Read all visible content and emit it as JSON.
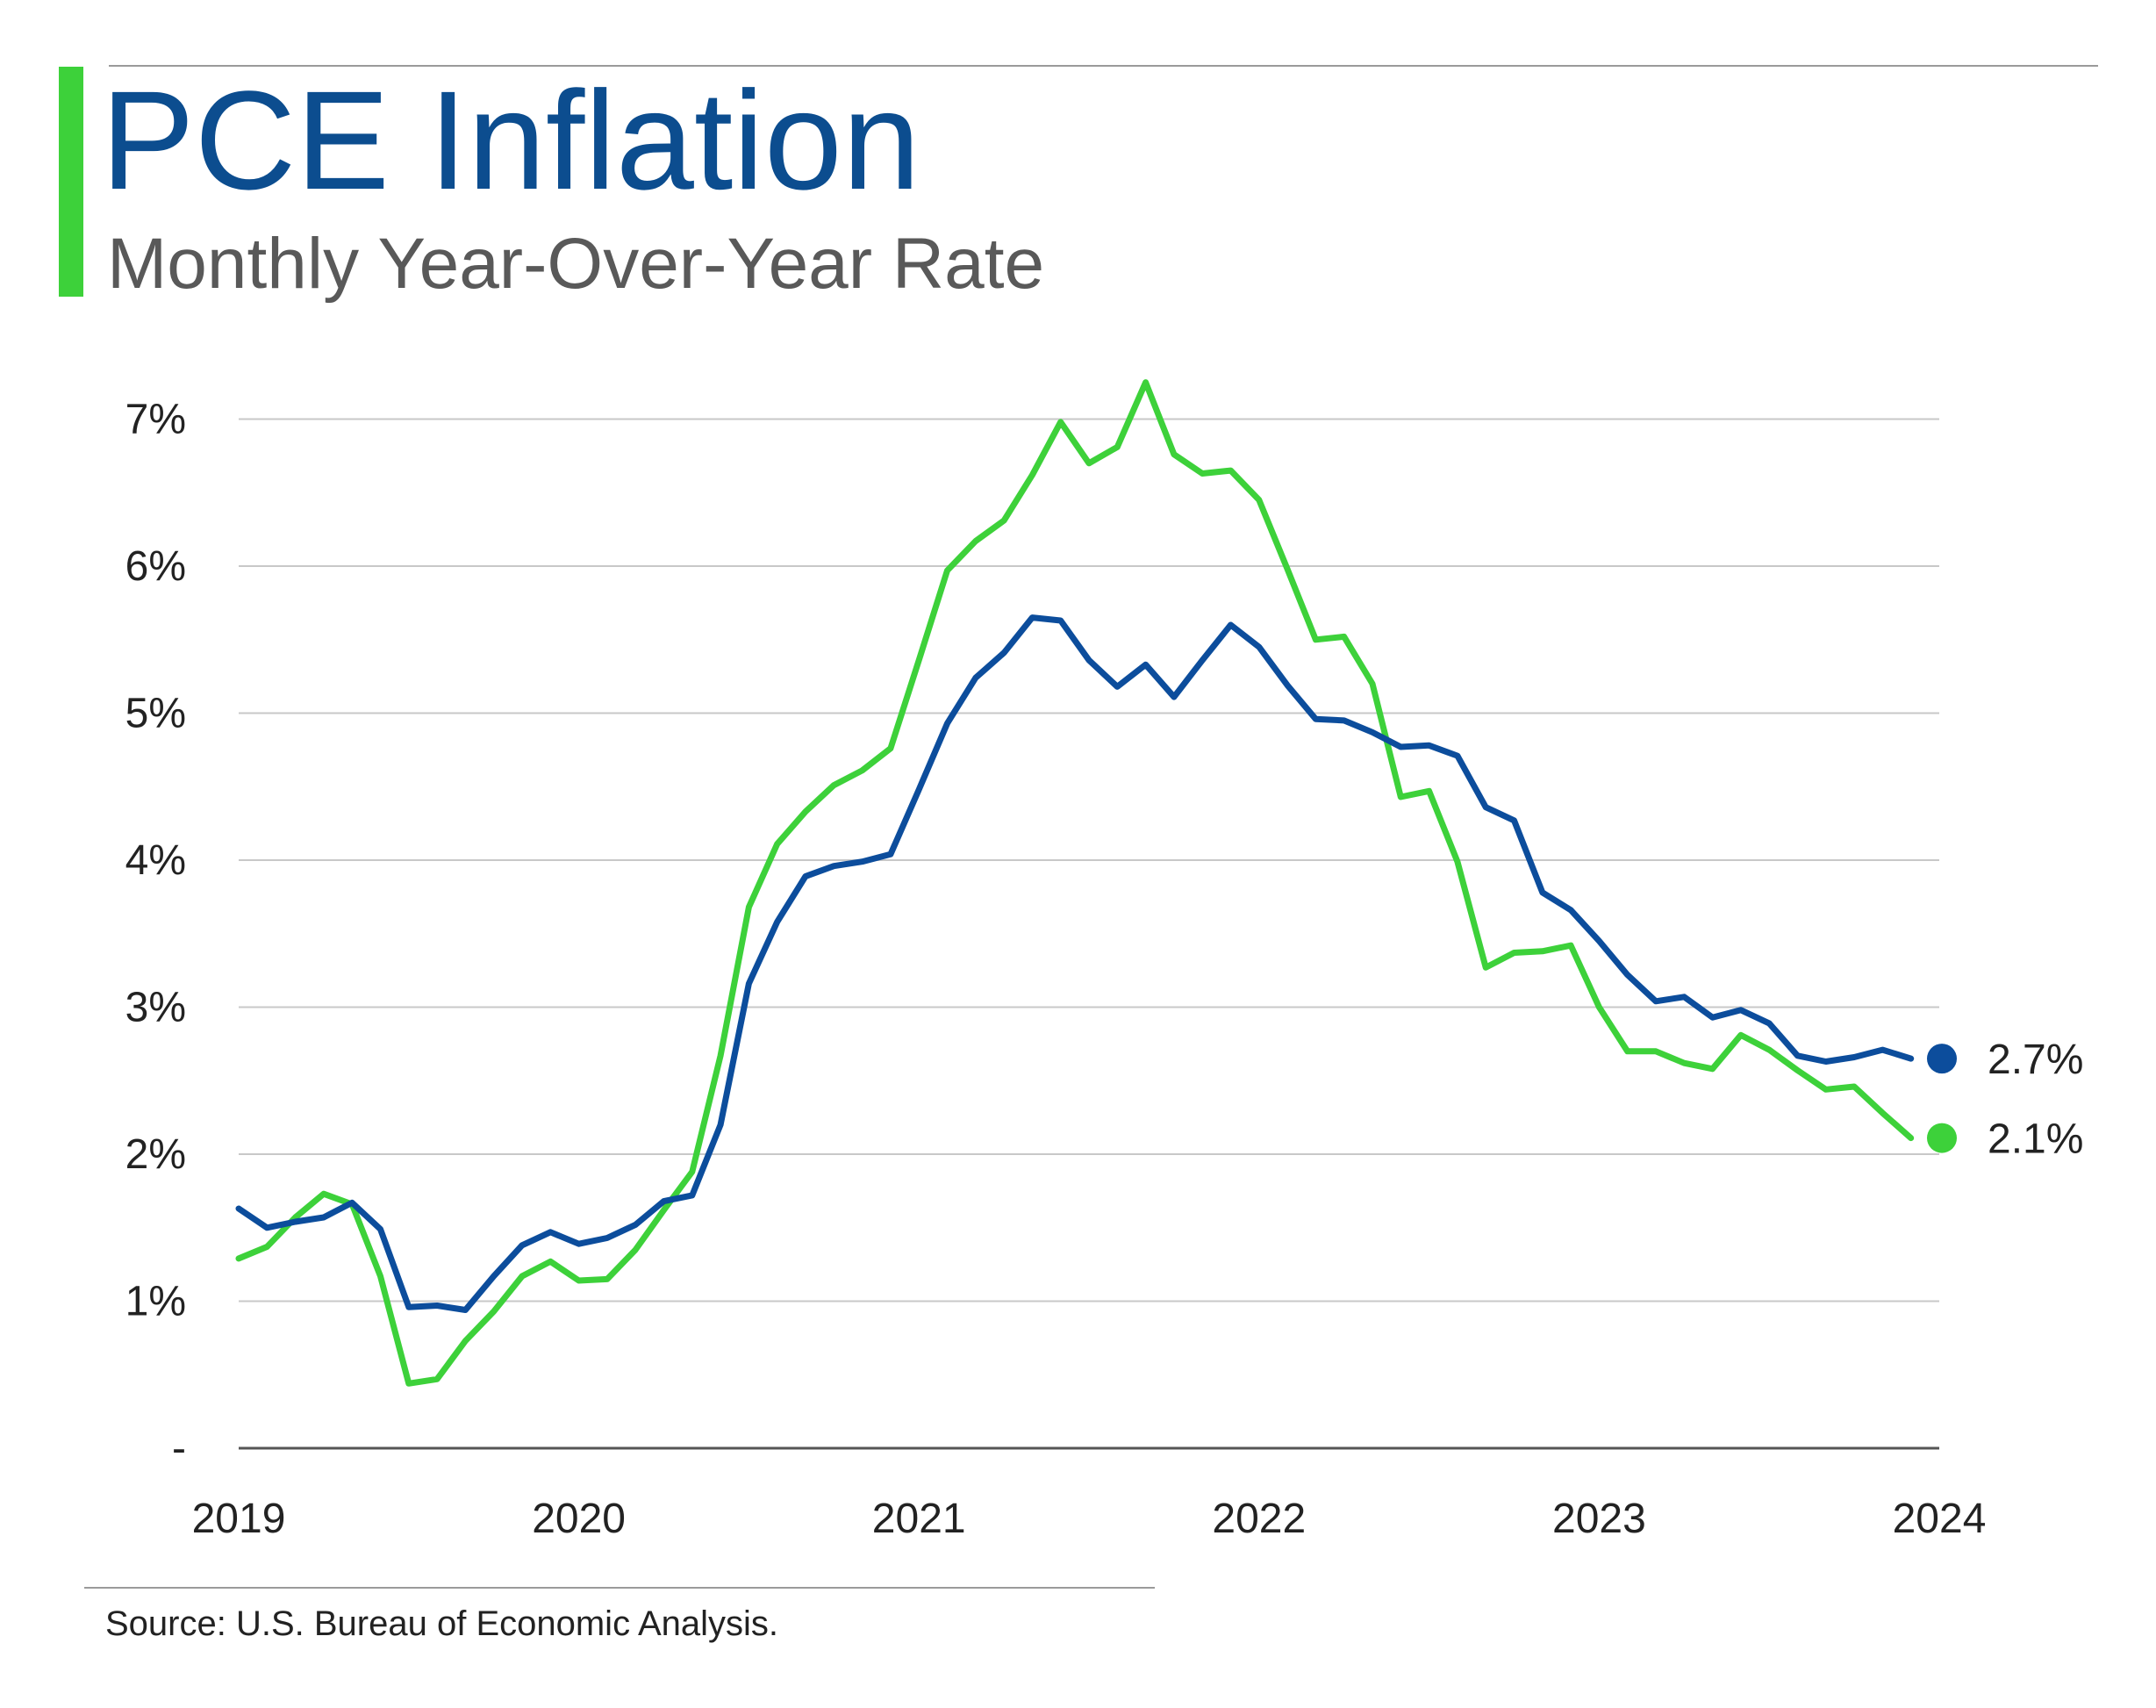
{
  "header": {
    "title": "PCE Inflation",
    "subtitle": "Monthly Year-Over-Year Rate"
  },
  "source": "Source: U.S. Bureau of Economic Analysis.",
  "colors": {
    "accent": "#3dd13a",
    "title": "#0c4d8f",
    "series_blue": "#0c4d9c",
    "series_green": "#3dd13a",
    "grid": "#c8c8c8"
  },
  "chart_data": {
    "type": "line",
    "x_start": "2019-01",
    "x_end": "2024-01",
    "x_ticks": [
      "2019",
      "2020",
      "2021",
      "2022",
      "2023",
      "2024"
    ],
    "ylim": [
      0,
      7.4
    ],
    "y_ticks": [
      {
        "value": 0,
        "label": "-"
      },
      {
        "value": 1,
        "label": "1%"
      },
      {
        "value": 2,
        "label": "2%"
      },
      {
        "value": 3,
        "label": "3%"
      },
      {
        "value": 4,
        "label": "4%"
      },
      {
        "value": 5,
        "label": "5%"
      },
      {
        "value": 6,
        "label": "6%"
      },
      {
        "value": 7,
        "label": "7%"
      }
    ],
    "grid": true,
    "legend": "none",
    "series": [
      {
        "color": "#0c4d9c",
        "end_label": "2.7%",
        "values": [
          1.63,
          1.5,
          1.54,
          1.57,
          1.67,
          1.49,
          0.96,
          0.97,
          0.94,
          1.17,
          1.38,
          1.47,
          1.39,
          1.43,
          1.52,
          1.68,
          1.72,
          2.2,
          3.16,
          3.58,
          3.89,
          3.96,
          3.99,
          4.04,
          4.48,
          4.93,
          5.24,
          5.41,
          5.65,
          5.63,
          5.36,
          5.18,
          5.33,
          5.11,
          5.36,
          5.6,
          5.45,
          5.19,
          4.96,
          4.95,
          4.87,
          4.77,
          4.78,
          4.71,
          4.36,
          4.27,
          3.78,
          3.66,
          3.45,
          3.22,
          3.04,
          3.07,
          2.93,
          2.98,
          2.89,
          2.67,
          2.63,
          2.66,
          2.71,
          2.65
        ]
      },
      {
        "color": "#3dd13a",
        "end_label": "2.1%",
        "values": [
          1.29,
          1.37,
          1.57,
          1.73,
          1.66,
          1.17,
          0.44,
          0.47,
          0.73,
          0.93,
          1.17,
          1.27,
          1.14,
          1.15,
          1.35,
          1.62,
          1.88,
          2.67,
          3.68,
          4.11,
          4.33,
          4.51,
          4.61,
          4.76,
          5.36,
          5.97,
          6.17,
          6.31,
          6.62,
          6.98,
          6.7,
          6.81,
          7.25,
          6.76,
          6.63,
          6.65,
          6.45,
          5.98,
          5.5,
          5.52,
          5.2,
          4.43,
          4.47,
          3.99,
          3.27,
          3.37,
          3.38,
          3.42,
          3.0,
          2.7,
          2.7,
          2.62,
          2.58,
          2.81,
          2.71,
          2.57,
          2.44,
          2.46,
          2.28,
          2.11
        ]
      }
    ]
  }
}
